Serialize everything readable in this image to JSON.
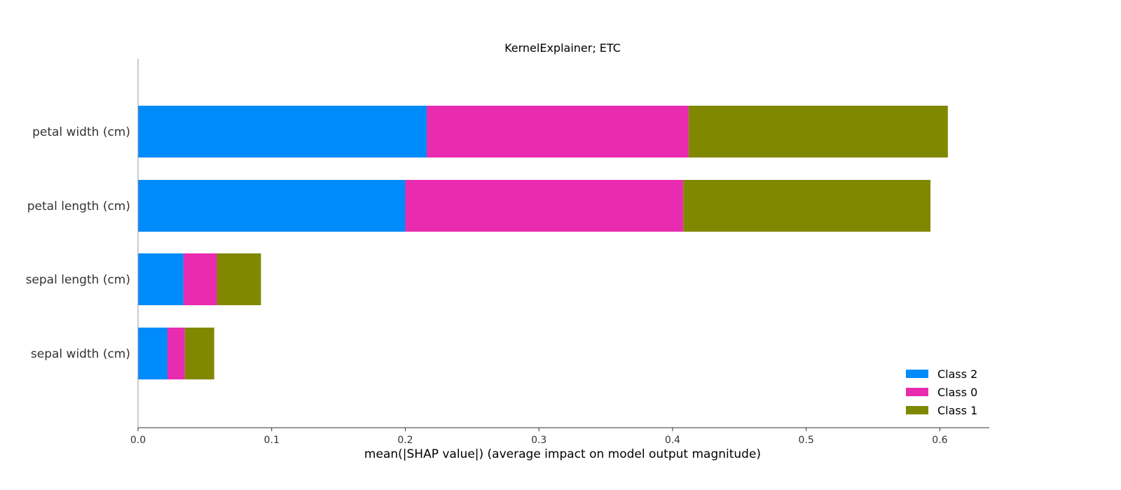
{
  "chart_data": {
    "type": "bar",
    "orientation": "horizontal",
    "stacked": true,
    "title": "KernelExplainer; ETC",
    "xlabel": "mean(|SHAP value|) (average impact on model output magnitude)",
    "ylabel": "",
    "categories": [
      "petal width (cm)",
      "petal length (cm)",
      "sepal length (cm)",
      "sepal width (cm)"
    ],
    "series": [
      {
        "name": "Class 2",
        "color": "#008bfb",
        "values": [
          0.216,
          0.2,
          0.034,
          0.022
        ]
      },
      {
        "name": "Class 0",
        "color": "#e92bb0",
        "values": [
          0.196,
          0.208,
          0.025,
          0.013
        ]
      },
      {
        "name": "Class 1",
        "color": "#808800",
        "values": [
          0.194,
          0.185,
          0.033,
          0.022
        ]
      }
    ],
    "xlim": [
      0,
      0.637
    ],
    "xticks": [
      0.0,
      0.1,
      0.2,
      0.3,
      0.4,
      0.5,
      0.6
    ],
    "xtick_labels": [
      "0.0",
      "0.1",
      "0.2",
      "0.3",
      "0.4",
      "0.5",
      "0.6"
    ],
    "grid": false,
    "legend_position": "bottom-right"
  }
}
